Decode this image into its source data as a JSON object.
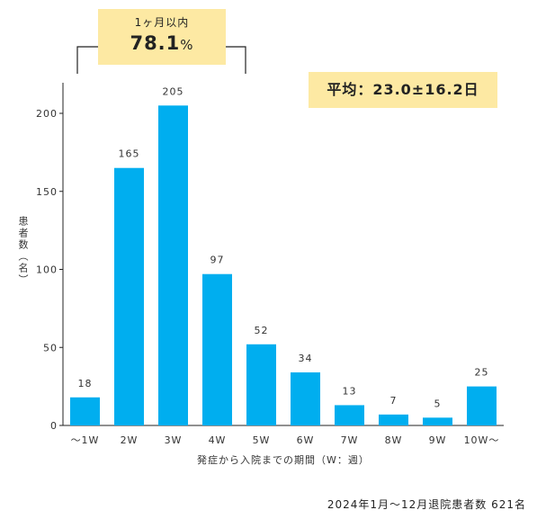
{
  "chart_data": {
    "type": "bar",
    "categories": [
      "～1W",
      "2W",
      "3W",
      "4W",
      "5W",
      "6W",
      "7W",
      "8W",
      "9W",
      "10W～"
    ],
    "values": [
      18,
      165,
      205,
      97,
      52,
      34,
      13,
      7,
      5,
      25
    ],
    "ylim": [
      0,
      220
    ],
    "yticks": [
      0,
      50,
      100,
      150,
      200
    ],
    "ylabel": "患者数（名）",
    "xlabel": "発症から入院までの期間（W：週）",
    "bar_color": "#00aeef",
    "grid": false
  },
  "callout": {
    "caption": "1ヶ月以内",
    "value": "78.1",
    "unit": "%",
    "bg_color": "#fde9a3"
  },
  "average": {
    "text": "平均：23.0±16.2日",
    "bg_color": "#fde9a3"
  },
  "footer": "2024年1月～12月退院患者数 621名"
}
